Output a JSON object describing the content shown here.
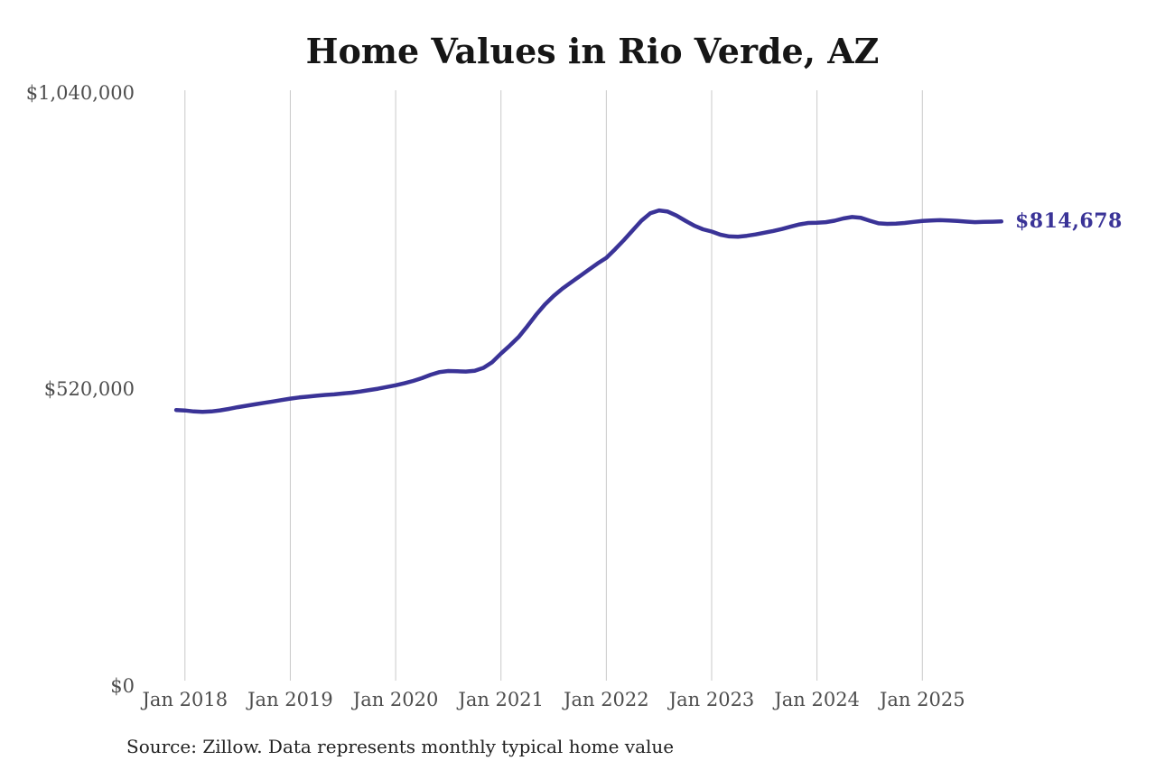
{
  "chart_data": {
    "type": "line",
    "title": "Home Values in Rio Verde, AZ",
    "series_name": "Monthly typical home value",
    "unit": "USD",
    "x_interval": "monthly",
    "months": [
      "2017-12",
      "2018-01",
      "2018-02",
      "2018-03",
      "2018-04",
      "2018-05",
      "2018-06",
      "2018-07",
      "2018-08",
      "2018-09",
      "2018-10",
      "2018-11",
      "2018-12",
      "2019-01",
      "2019-02",
      "2019-03",
      "2019-04",
      "2019-05",
      "2019-06",
      "2019-07",
      "2019-08",
      "2019-09",
      "2019-10",
      "2019-11",
      "2019-12",
      "2020-01",
      "2020-02",
      "2020-03",
      "2020-04",
      "2020-05",
      "2020-06",
      "2020-07",
      "2020-08",
      "2020-09",
      "2020-10",
      "2020-11",
      "2020-12",
      "2021-01",
      "2021-02",
      "2021-03",
      "2021-04",
      "2021-05",
      "2021-06",
      "2021-07",
      "2021-08",
      "2021-09",
      "2021-10",
      "2021-11",
      "2021-12",
      "2022-01",
      "2022-02",
      "2022-03",
      "2022-04",
      "2022-05",
      "2022-06",
      "2022-07",
      "2022-08",
      "2022-09",
      "2022-10",
      "2022-11",
      "2022-12",
      "2023-01",
      "2023-02",
      "2023-03",
      "2023-04",
      "2023-05",
      "2023-06",
      "2023-07",
      "2023-08",
      "2023-09",
      "2023-10",
      "2023-11",
      "2023-12",
      "2024-01",
      "2024-02",
      "2024-03",
      "2024-04",
      "2024-05",
      "2024-06",
      "2024-07",
      "2024-08",
      "2024-09",
      "2024-10",
      "2024-11",
      "2024-12",
      "2025-01",
      "2025-02",
      "2025-03",
      "2025-04",
      "2025-05",
      "2025-06",
      "2025-07",
      "2025-08",
      "2025-09",
      "2025-10"
    ],
    "values": [
      484000,
      483300,
      481500,
      480700,
      481500,
      483400,
      486000,
      489000,
      491500,
      494000,
      496500,
      499000,
      501500,
      504000,
      506000,
      507500,
      509000,
      510500,
      511500,
      513000,
      514500,
      516500,
      519000,
      521500,
      524500,
      527500,
      531000,
      535000,
      540000,
      546000,
      550500,
      552500,
      552000,
      551500,
      553000,
      558000,
      568000,
      583000,
      597000,
      612000,
      631000,
      651000,
      669000,
      684000,
      697000,
      708000,
      719000,
      730000,
      741000,
      751000,
      766000,
      782000,
      799000,
      816000,
      829000,
      834000,
      832000,
      825000,
      816000,
      807500,
      801000,
      797000,
      791500,
      788500,
      788000,
      789500,
      792000,
      795000,
      798000,
      801500,
      805500,
      809500,
      812000,
      812500,
      813500,
      816000,
      820000,
      822500,
      821000,
      816000,
      811500,
      810500,
      811000,
      812000,
      814000,
      815500,
      816500,
      817000,
      816500,
      815500,
      814500,
      813500,
      814000,
      814300,
      814678
    ],
    "x_tick_labels": [
      "Jan 2018",
      "Jan 2019",
      "Jan 2020",
      "Jan 2021",
      "Jan 2022",
      "Jan 2023",
      "Jan 2024",
      "Jan 2025"
    ],
    "y_tick_labels": [
      "$1,040,000",
      "$520,000",
      "$0"
    ],
    "y_tick_values": [
      1040000,
      520000,
      0
    ],
    "ylim": [
      0,
      1040000
    ],
    "grid": "vertical-only",
    "legend": "none",
    "end_label": "$814,678",
    "end_value": 814678,
    "line_color": "#3a3397",
    "grid_color": "#c9c9c9",
    "label_color": "#4d4d4d"
  },
  "source_note": "Source: Zillow. Data represents monthly typical home value"
}
